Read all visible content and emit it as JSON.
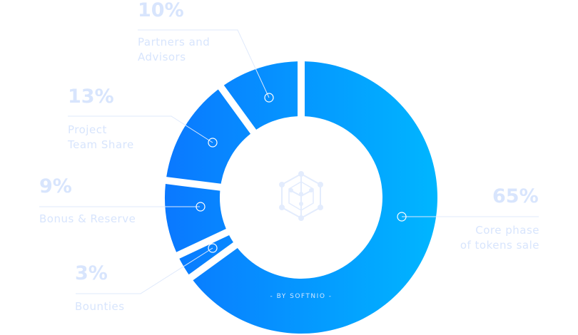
{
  "chart_data": {
    "type": "pie",
    "variant": "donut",
    "slices": [
      {
        "label": "Core phase\nof tokens sale",
        "percent_label": "65%",
        "value": 65
      },
      {
        "label": "Bounties",
        "percent_label": "3%",
        "value": 3
      },
      {
        "label": "Bonus & Reserve",
        "percent_label": "9%",
        "value": 9
      },
      {
        "label": "Project\nTeam Share",
        "percent_label": "13%",
        "value": 13
      },
      {
        "label": "Partners and\nAdvisors",
        "percent_label": "10%",
        "value": 10
      }
    ],
    "start": "top",
    "direction": "clockwise",
    "colors": {
      "gradient_start": "#0a78ff",
      "gradient_end": "#00b6ff",
      "label": "#d8e5fd"
    },
    "center_icon": "hexagon-cube-network-icon",
    "credit": "- BY SOFTNIO -"
  }
}
